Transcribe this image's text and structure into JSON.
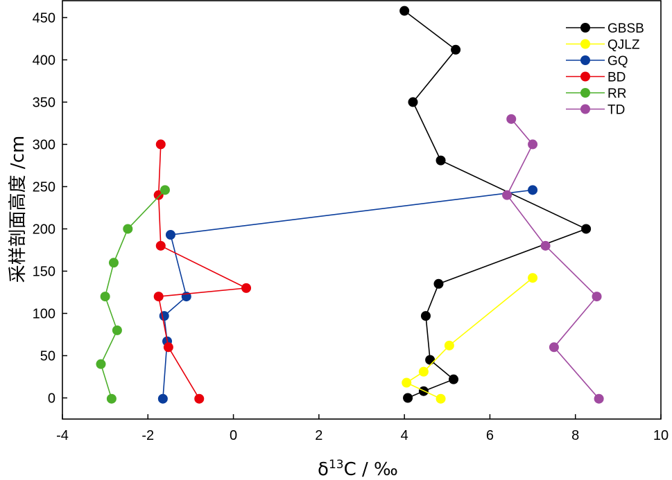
{
  "chart_data": {
    "type": "line",
    "xlabel": "δ13C / ‰",
    "xlabel_parts": {
      "base": "δ",
      "sup": "13",
      "rest": "C / ‰"
    },
    "ylabel": "采样剖面高度 /cm",
    "xlim": [
      -4,
      10
    ],
    "ylim": [
      -25,
      470
    ],
    "xticks": [
      -4,
      -2,
      0,
      2,
      4,
      6,
      8,
      10
    ],
    "yticks": [
      0,
      50,
      100,
      150,
      200,
      250,
      300,
      350,
      400,
      450
    ],
    "grid": false,
    "legend_position": "top-right",
    "series": [
      {
        "name": "GBSB",
        "color": "#000000",
        "points": [
          [
            4.08,
            0
          ],
          [
            4.45,
            8
          ],
          [
            5.15,
            22
          ],
          [
            4.6,
            45
          ],
          [
            4.5,
            97
          ],
          [
            4.8,
            135
          ],
          [
            8.25,
            200
          ],
          [
            4.85,
            281
          ],
          [
            4.2,
            350
          ],
          [
            5.2,
            412
          ],
          [
            4.0,
            458
          ]
        ]
      },
      {
        "name": "QJLZ",
        "color": "#ffff00",
        "points": [
          [
            4.85,
            -1
          ],
          [
            4.05,
            18
          ],
          [
            4.45,
            31
          ],
          [
            5.05,
            62
          ],
          [
            7.0,
            142
          ]
        ]
      },
      {
        "name": "GQ",
        "color": "#0a3d9c",
        "points": [
          [
            -1.65,
            -1
          ],
          [
            -1.55,
            67
          ],
          [
            -1.62,
            97
          ],
          [
            -1.1,
            120
          ],
          [
            -1.47,
            193
          ],
          [
            7.0,
            246
          ]
        ]
      },
      {
        "name": "BD",
        "color": "#e8000b",
        "points": [
          [
            -0.8,
            -1
          ],
          [
            -1.52,
            60
          ],
          [
            -1.75,
            120
          ],
          [
            0.3,
            130
          ],
          [
            -1.7,
            180
          ],
          [
            -1.75,
            240
          ],
          [
            -1.7,
            300
          ]
        ]
      },
      {
        "name": "RR",
        "color": "#4caf2a",
        "points": [
          [
            -2.85,
            -1
          ],
          [
            -3.1,
            40
          ],
          [
            -2.72,
            80
          ],
          [
            -3.0,
            120
          ],
          [
            -2.8,
            160
          ],
          [
            -2.47,
            200
          ],
          [
            -1.6,
            246
          ]
        ]
      },
      {
        "name": "TD",
        "color": "#a04aa0",
        "points": [
          [
            8.55,
            -1
          ],
          [
            7.5,
            60
          ],
          [
            8.5,
            120
          ],
          [
            7.3,
            180
          ],
          [
            6.4,
            240
          ],
          [
            7.0,
            300
          ],
          [
            6.5,
            330
          ]
        ]
      }
    ]
  }
}
